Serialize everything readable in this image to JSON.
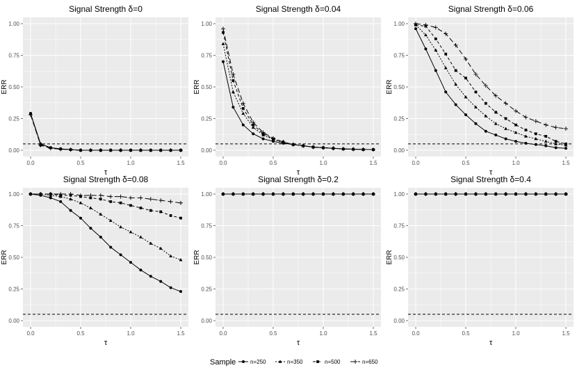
{
  "figure": {
    "ylabel": "ERR",
    "xlabel": "τ",
    "legend_title": "Sample",
    "series_names": [
      "n=250",
      "n=350",
      "n=500",
      "n=650"
    ],
    "reference_line": 0.05,
    "xlim": [
      0,
      1.5
    ],
    "ylim": [
      0,
      1
    ],
    "x_ticks": [
      0,
      0.5,
      1,
      1.5
    ],
    "x_tick_labels": [
      "0.0",
      "0.5",
      "1.0",
      "1.5"
    ],
    "y_ticks": [
      0,
      0.25,
      0.5,
      0.75,
      1
    ],
    "y_tick_labels": [
      "0.00",
      "0.25",
      "0.50",
      "0.75",
      "1.00"
    ]
  },
  "chart_data": [
    {
      "type": "line",
      "title": "Signal Strength δ=0",
      "xlabel": "τ",
      "ylabel": "ERR",
      "x": [
        0,
        0.1,
        0.2,
        0.3,
        0.4,
        0.5,
        0.6,
        0.7,
        0.8,
        0.9,
        1.0,
        1.1,
        1.2,
        1.3,
        1.4,
        1.5
      ],
      "series": [
        {
          "name": "n=250",
          "values": [
            0.29,
            0.05,
            0.02,
            0.01,
            0.005,
            0,
            0,
            0,
            0,
            0,
            0,
            0,
            0,
            0,
            0,
            0
          ]
        },
        {
          "name": "n=350",
          "values": [
            0.29,
            0.05,
            0.02,
            0.01,
            0.005,
            0,
            0,
            0,
            0,
            0,
            0,
            0,
            0,
            0,
            0,
            0
          ]
        },
        {
          "name": "n=500",
          "values": [
            0.29,
            0.04,
            0.02,
            0.01,
            0.005,
            0,
            0,
            0,
            0,
            0,
            0,
            0,
            0,
            0,
            0,
            0
          ]
        },
        {
          "name": "n=650",
          "values": [
            0.28,
            0.04,
            0.015,
            0.008,
            0.004,
            0,
            0,
            0,
            0,
            0,
            0,
            0,
            0,
            0,
            0,
            0
          ]
        }
      ]
    },
    {
      "type": "line",
      "title": "Signal Strength δ=0.04",
      "xlabel": "τ",
      "ylabel": "ERR",
      "x": [
        0,
        0.1,
        0.2,
        0.3,
        0.4,
        0.5,
        0.6,
        0.7,
        0.8,
        0.9,
        1.0,
        1.1,
        1.2,
        1.3,
        1.4,
        1.5
      ],
      "series": [
        {
          "name": "n=250",
          "values": [
            0.7,
            0.34,
            0.2,
            0.13,
            0.09,
            0.07,
            0.055,
            0.045,
            0.035,
            0.025,
            0.02,
            0.015,
            0.01,
            0.008,
            0.006,
            0.005
          ]
        },
        {
          "name": "n=350",
          "values": [
            0.84,
            0.46,
            0.29,
            0.18,
            0.12,
            0.085,
            0.06,
            0.045,
            0.035,
            0.025,
            0.02,
            0.015,
            0.01,
            0.008,
            0.006,
            0.005
          ]
        },
        {
          "name": "n=500",
          "values": [
            0.93,
            0.55,
            0.33,
            0.2,
            0.13,
            0.09,
            0.065,
            0.045,
            0.035,
            0.025,
            0.02,
            0.015,
            0.01,
            0.008,
            0.006,
            0.005
          ]
        },
        {
          "name": "n=650",
          "values": [
            0.96,
            0.6,
            0.37,
            0.22,
            0.14,
            0.095,
            0.065,
            0.045,
            0.035,
            0.025,
            0.02,
            0.015,
            0.01,
            0.008,
            0.006,
            0.005
          ]
        }
      ]
    },
    {
      "type": "line",
      "title": "Signal Strength δ=0.06",
      "xlabel": "τ",
      "ylabel": "ERR",
      "x": [
        0,
        0.1,
        0.2,
        0.3,
        0.4,
        0.5,
        0.6,
        0.7,
        0.8,
        0.9,
        1.0,
        1.1,
        1.2,
        1.3,
        1.4,
        1.5
      ],
      "series": [
        {
          "name": "n=250",
          "values": [
            0.96,
            0.8,
            0.63,
            0.46,
            0.36,
            0.28,
            0.21,
            0.15,
            0.12,
            0.09,
            0.07,
            0.055,
            0.045,
            0.035,
            0.02,
            0.015
          ]
        },
        {
          "name": "n=350",
          "values": [
            0.99,
            0.91,
            0.79,
            0.65,
            0.52,
            0.42,
            0.34,
            0.27,
            0.21,
            0.17,
            0.14,
            0.11,
            0.09,
            0.07,
            0.05,
            0.04
          ]
        },
        {
          "name": "n=500",
          "values": [
            0.99,
            0.98,
            0.88,
            0.76,
            0.63,
            0.57,
            0.46,
            0.37,
            0.3,
            0.25,
            0.2,
            0.16,
            0.13,
            0.11,
            0.07,
            0.05
          ]
        },
        {
          "name": "n=650",
          "values": [
            1.0,
            0.99,
            0.97,
            0.92,
            0.83,
            0.72,
            0.6,
            0.51,
            0.43,
            0.37,
            0.31,
            0.26,
            0.23,
            0.2,
            0.18,
            0.17
          ]
        }
      ]
    },
    {
      "type": "line",
      "title": "Signal Strength δ=0.08",
      "xlabel": "τ",
      "ylabel": "ERR",
      "x": [
        0,
        0.1,
        0.2,
        0.3,
        0.4,
        0.5,
        0.6,
        0.7,
        0.8,
        0.9,
        1.0,
        1.1,
        1.2,
        1.3,
        1.4,
        1.5
      ],
      "series": [
        {
          "name": "n=250",
          "values": [
            1.0,
            0.99,
            0.97,
            0.94,
            0.87,
            0.81,
            0.73,
            0.66,
            0.58,
            0.52,
            0.46,
            0.4,
            0.35,
            0.31,
            0.26,
            0.23
          ]
        },
        {
          "name": "n=350",
          "values": [
            1.0,
            1.0,
            0.99,
            0.98,
            0.96,
            0.93,
            0.89,
            0.84,
            0.79,
            0.74,
            0.7,
            0.66,
            0.61,
            0.57,
            0.51,
            0.48
          ]
        },
        {
          "name": "n=500",
          "values": [
            1.0,
            1.0,
            1.0,
            0.99,
            0.99,
            0.98,
            0.97,
            0.96,
            0.94,
            0.93,
            0.91,
            0.89,
            0.87,
            0.86,
            0.83,
            0.81
          ]
        },
        {
          "name": "n=650",
          "values": [
            1.0,
            1.0,
            1.0,
            1.0,
            1.0,
            0.99,
            0.99,
            0.99,
            0.98,
            0.98,
            0.97,
            0.97,
            0.96,
            0.95,
            0.94,
            0.93
          ]
        }
      ]
    },
    {
      "type": "line",
      "title": "Signal Strength δ=0.2",
      "xlabel": "τ",
      "ylabel": "ERR",
      "x": [
        0,
        0.1,
        0.2,
        0.3,
        0.4,
        0.5,
        0.6,
        0.7,
        0.8,
        0.9,
        1.0,
        1.1,
        1.2,
        1.3,
        1.4,
        1.5
      ],
      "series": [
        {
          "name": "n=250",
          "values": [
            1,
            1,
            1,
            1,
            1,
            1,
            1,
            1,
            1,
            1,
            1,
            1,
            1,
            1,
            1,
            1
          ]
        },
        {
          "name": "n=350",
          "values": [
            1,
            1,
            1,
            1,
            1,
            1,
            1,
            1,
            1,
            1,
            1,
            1,
            1,
            1,
            1,
            1
          ]
        },
        {
          "name": "n=500",
          "values": [
            1,
            1,
            1,
            1,
            1,
            1,
            1,
            1,
            1,
            1,
            1,
            1,
            1,
            1,
            1,
            1
          ]
        },
        {
          "name": "n=650",
          "values": [
            1,
            1,
            1,
            1,
            1,
            1,
            1,
            1,
            1,
            1,
            1,
            1,
            1,
            1,
            1,
            1
          ]
        }
      ]
    },
    {
      "type": "line",
      "title": "Signal Strength δ=0.4",
      "xlabel": "τ",
      "ylabel": "ERR",
      "x": [
        0,
        0.1,
        0.2,
        0.3,
        0.4,
        0.5,
        0.6,
        0.7,
        0.8,
        0.9,
        1.0,
        1.1,
        1.2,
        1.3,
        1.4,
        1.5
      ],
      "series": [
        {
          "name": "n=250",
          "values": [
            1,
            1,
            1,
            1,
            1,
            1,
            1,
            1,
            1,
            1,
            1,
            1,
            1,
            1,
            1,
            1
          ]
        },
        {
          "name": "n=350",
          "values": [
            1,
            1,
            1,
            1,
            1,
            1,
            1,
            1,
            1,
            1,
            1,
            1,
            1,
            1,
            1,
            1
          ]
        },
        {
          "name": "n=500",
          "values": [
            1,
            1,
            1,
            1,
            1,
            1,
            1,
            1,
            1,
            1,
            1,
            1,
            1,
            1,
            1,
            1
          ]
        },
        {
          "name": "n=650",
          "values": [
            1,
            1,
            1,
            1,
            1,
            1,
            1,
            1,
            1,
            1,
            1,
            1,
            1,
            1,
            1,
            1
          ]
        }
      ]
    }
  ]
}
